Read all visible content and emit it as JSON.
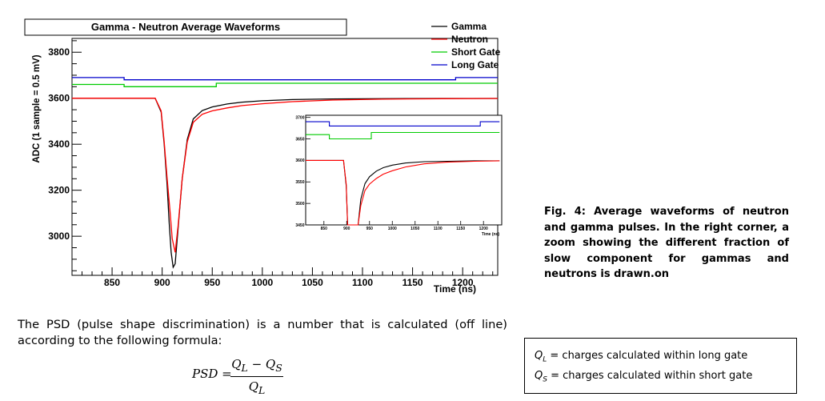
{
  "chart_data": {
    "type": "line",
    "title": "Gamma - Neutron Average Waveforms",
    "xlabel": "Time (ns)",
    "ylabel": "ADC (1 sample = 0.5 mV)",
    "xlim": [
      810,
      1235
    ],
    "ylim": [
      2830,
      3860
    ],
    "xticks": [
      850,
      900,
      950,
      1000,
      1050,
      1100,
      1150,
      1200
    ],
    "yticks": [
      3000,
      3200,
      3400,
      3600,
      3800
    ],
    "legend": {
      "placement": "top-right",
      "entries": [
        {
          "name": "Gamma",
          "color": "#000000"
        },
        {
          "name": "Neutron",
          "color": "#ff0000"
        },
        {
          "name": "Short Gate",
          "color": "#00cc00"
        },
        {
          "name": "Long Gate",
          "color": "#0000cc"
        }
      ]
    },
    "series": [
      {
        "name": "Gamma",
        "color": "#000000",
        "x": [
          810,
          893,
          899,
          902,
          905,
          907,
          909,
          911,
          913,
          916,
          920,
          925,
          931,
          940,
          950,
          965,
          980,
          1000,
          1030,
          1070,
          1120,
          1180,
          1235
        ],
        "y": [
          3600,
          3600,
          3540,
          3400,
          3220,
          3060,
          2930,
          2865,
          2880,
          3040,
          3250,
          3420,
          3510,
          3546,
          3562,
          3575,
          3583,
          3589,
          3594,
          3597,
          3598,
          3599,
          3599
        ]
      },
      {
        "name": "Neutron",
        "color": "#ff0000",
        "x": [
          810,
          893,
          899,
          902,
          905,
          908,
          910,
          913,
          916,
          920,
          925,
          931,
          940,
          950,
          965,
          980,
          1000,
          1030,
          1070,
          1120,
          1180,
          1235
        ],
        "y": [
          3600,
          3600,
          3545,
          3410,
          3250,
          3100,
          2990,
          2930,
          3050,
          3250,
          3410,
          3495,
          3530,
          3545,
          3558,
          3568,
          3576,
          3585,
          3592,
          3596,
          3598,
          3599
        ]
      },
      {
        "name": "Short Gate",
        "color": "#00cc00",
        "x": [
          810,
          862,
          862,
          954,
          954,
          1235
        ],
        "y": [
          3660,
          3660,
          3650,
          3650,
          3665,
          3665
        ]
      },
      {
        "name": "Long Gate",
        "color": "#0000cc",
        "x": [
          810,
          862,
          862,
          1193,
          1193,
          1235
        ],
        "y": [
          3690,
          3690,
          3680,
          3680,
          3690,
          3690
        ]
      }
    ],
    "inset": {
      "xlabel": "Time (ns)",
      "xlim": [
        810,
        1240
      ],
      "ylim": [
        3450,
        3705
      ],
      "xticks": [
        850,
        900,
        950,
        1000,
        1050,
        1100,
        1150,
        1200
      ],
      "yticks": [
        3450,
        3500,
        3550,
        3600,
        3650,
        3700
      ]
    }
  },
  "caption": "Fig. 4: Average waveforms of neutron and gamma pulses. In the right corner, a zoom showing the different fraction of slow component for gammas and neutrons is drawn.on",
  "body_text": "The PSD (pulse shape discrimination) is a number that is calculated (off line) according to the following formula:",
  "formula": {
    "lhs": "PSD =",
    "numerator": "QL − QS",
    "denominator": "QL"
  },
  "definitions": [
    {
      "symbol": "QL",
      "text": "= charges calculated within long gate"
    },
    {
      "symbol": "QS",
      "text": "= charges calculated within short gate"
    }
  ]
}
